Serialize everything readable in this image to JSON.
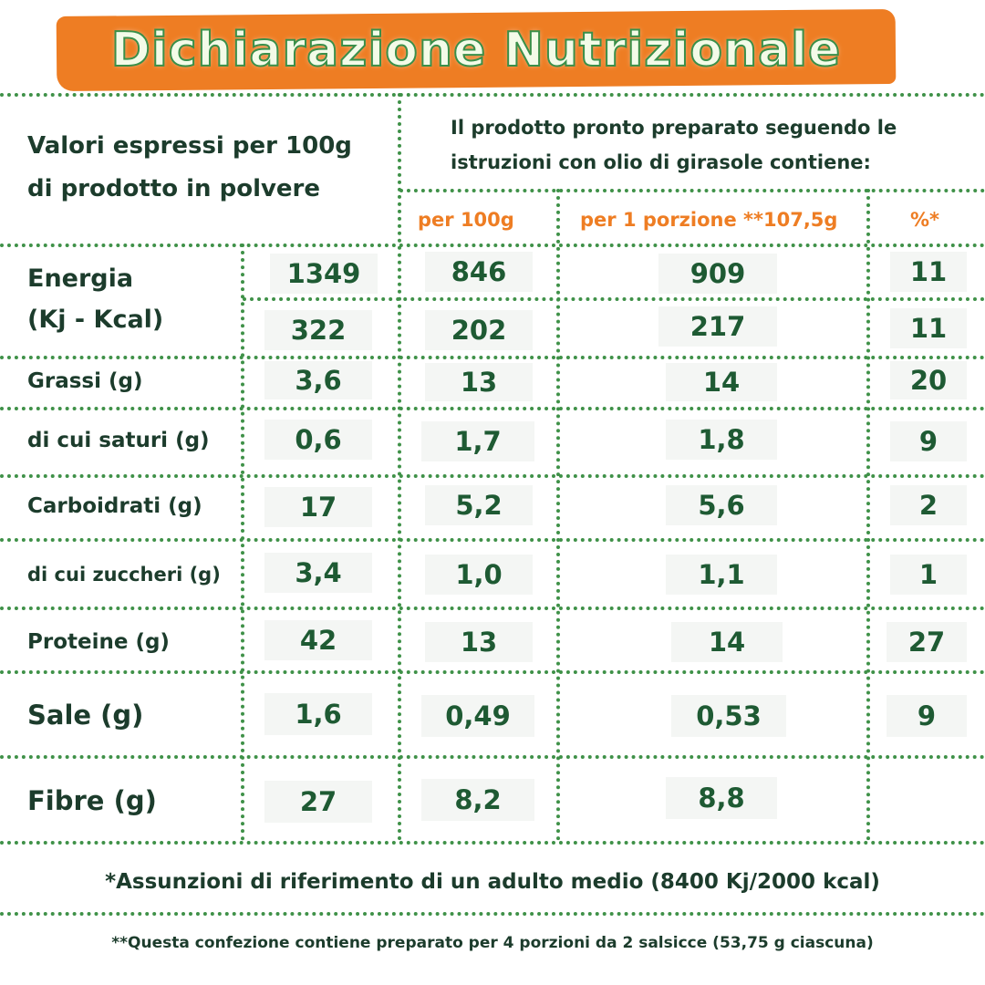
{
  "title": "Dichiarazione Nutrizionale",
  "header": {
    "left_line1": "Valori espressi per 100g",
    "left_line2": "di prodotto in polvere",
    "right_line1": "Il prodotto pronto preparato seguendo le",
    "right_line2": "istruzioni con olio di girasole contiene:",
    "col_per100": "per 100g",
    "col_portion": "per 1 porzione **107,5g",
    "col_pct": "%*"
  },
  "rows": [
    {
      "label1": "Energia",
      "label2": "(Kj - Kcal)",
      "kj": [
        "1349",
        "846",
        "909",
        "11"
      ],
      "kcal": [
        "322",
        "202",
        "217",
        "11"
      ]
    },
    {
      "label": "Grassi (g)",
      "values": [
        "3,6",
        "13",
        "14",
        "20"
      ]
    },
    {
      "label": "di cui saturi (g)",
      "values": [
        "0,6",
        "1,7",
        "1,8",
        "9"
      ]
    },
    {
      "label": "Carboidrati (g)",
      "values": [
        "17",
        "5,2",
        "5,6",
        "2"
      ]
    },
    {
      "label": "di cui zuccheri (g)",
      "values": [
        "3,4",
        "1,0",
        "1,1",
        "1"
      ]
    },
    {
      "label": "Proteine (g)",
      "values": [
        "42",
        "13",
        "14",
        "27"
      ]
    },
    {
      "label": "Sale (g)",
      "values": [
        "1,6",
        "0,49",
        "0,53",
        "9"
      ]
    },
    {
      "label": "Fibre (g)",
      "values": [
        "27",
        "8,2",
        "8,8",
        ""
      ]
    }
  ],
  "footnote1": "*Assunzioni di riferimento di un adulto medio (8400 Kj/2000 kcal)",
  "footnote2": "**Questa confezione contiene preparato per 4 porzioni da 2 salsicce (53,75 g ciascuna)",
  "colors": {
    "accent_orange": "#ee7d23",
    "grid_green": "#3f9148",
    "text_dark": "#1c3c2c",
    "value_green": "#1e5a33"
  }
}
